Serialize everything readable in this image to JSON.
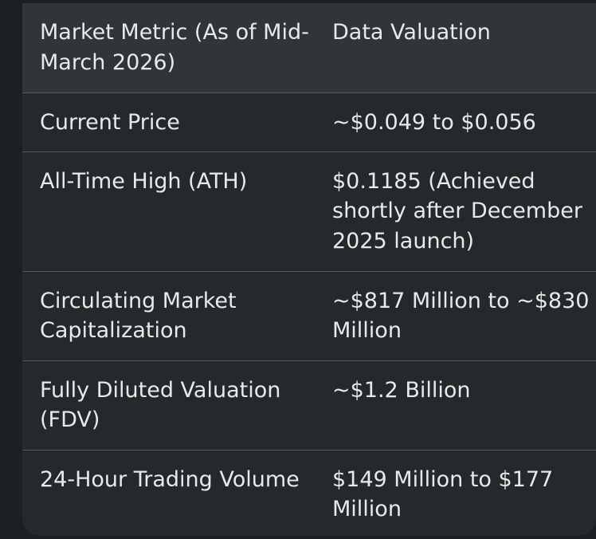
{
  "table": {
    "headers": [
      "Market Metric (As of Mid-March 2026)",
      "Data Valuation"
    ],
    "rows": [
      {
        "metric": "Current Price",
        "value": "~$0.049 to $0.056"
      },
      {
        "metric": "All-Time High (ATH)",
        "value": "$0.1185 (Achieved shortly after December 2025 launch)"
      },
      {
        "metric": "Circulating Market Capitalization",
        "value": "~$817 Million to ~$830 Million"
      },
      {
        "metric": "Fully Diluted Valuation (FDV)",
        "value": "~$1.2 Billion"
      },
      {
        "metric": "24-Hour Trading Volume",
        "value": "$149 Million to $177 Million"
      }
    ]
  }
}
